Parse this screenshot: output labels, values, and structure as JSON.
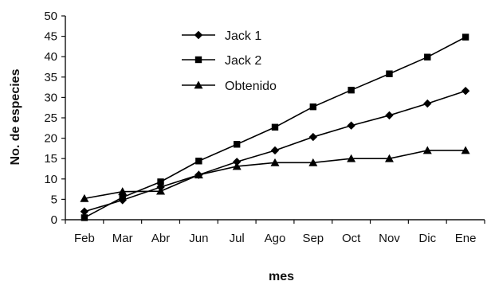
{
  "chart_data": {
    "type": "line",
    "title": "",
    "xlabel": "mes",
    "ylabel": "No. de especies",
    "categories": [
      "Feb",
      "Mar",
      "Abr",
      "Jun",
      "Jul",
      "Ago",
      "Sep",
      "Oct",
      "Nov",
      "Dic",
      "Ene"
    ],
    "ylim": [
      0,
      50
    ],
    "yticks": [
      "0",
      "5",
      "10",
      "15",
      "20",
      "25",
      "30",
      "35",
      "40",
      "45",
      "50"
    ],
    "grid": false,
    "legend_position": "top-left",
    "series": [
      {
        "name": "Jack 1",
        "marker": "diamond",
        "color": "#000000",
        "values": [
          2,
          4.8,
          8,
          11,
          14.2,
          17,
          20.3,
          23.1,
          25.6,
          28.5,
          31.6
        ]
      },
      {
        "name": "Jack 2",
        "marker": "square",
        "color": "#000000",
        "values": [
          0.5,
          5.5,
          9.3,
          14.4,
          18.5,
          22.7,
          27.7,
          31.8,
          35.8,
          39.9,
          44.8
        ]
      },
      {
        "name": "Obtenido",
        "marker": "triangle",
        "color": "#000000",
        "values": [
          5.2,
          6.9,
          7,
          11,
          13.1,
          14,
          14,
          15,
          15,
          17,
          17
        ]
      }
    ]
  }
}
